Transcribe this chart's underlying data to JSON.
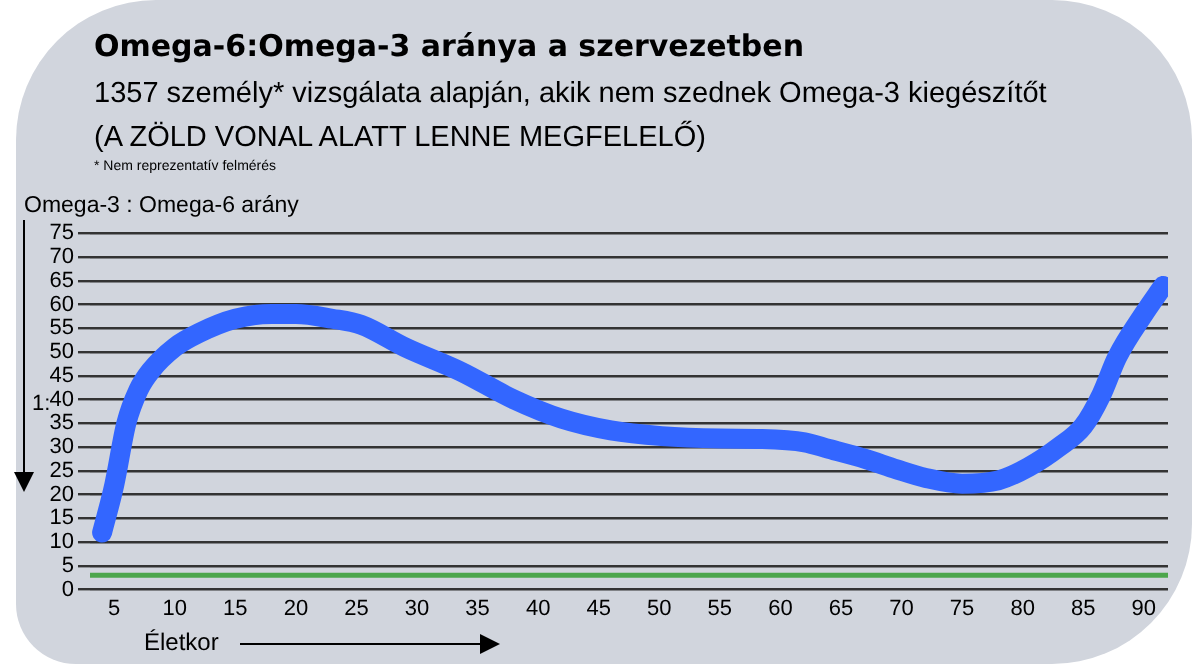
{
  "chart_data": {
    "type": "line",
    "title": "Omega-6:Omega-3 aránya a szervezetben",
    "subtitle": "1357 személy* vizsgálata alapján, akik nem szednek Omega-3 kiegészítőt\n(A ZÖLD VONAL ALATT LENNE MEGFELELŐ)",
    "ylabel": "Omega-3 : Omega-6 arány",
    "xlabel": "Életkor",
    "annotations": [
      "* Nem reprezentatív felmérés",
      "1:"
    ],
    "series": [
      {
        "color": "#3366ff",
        "x": [
          4,
          5,
          6,
          7,
          8,
          10,
          12,
          15,
          18,
          20,
          23,
          25.4,
          29,
          33.6,
          38,
          41.9,
          46,
          50.2,
          55,
          58.5,
          62,
          64,
          67,
          69.6,
          72,
          75,
          78,
          80.5,
          83,
          85,
          86.5,
          87.8,
          90,
          91.6
        ],
        "values": [
          12,
          22,
          35,
          42,
          46,
          51,
          54,
          57,
          58,
          58,
          57,
          55.7,
          51,
          45.9,
          40,
          36,
          33.5,
          32.3,
          31.8,
          31.7,
          31,
          29.6,
          27.5,
          25.3,
          23.5,
          22.3,
          23,
          25.8,
          30,
          34.4,
          41,
          48.9,
          58,
          63.9
        ]
      }
    ],
    "xlim": [
      3,
      92
    ],
    "ylim": [
      0,
      75
    ],
    "xticks": [
      5,
      10,
      15,
      20,
      25,
      30,
      35,
      40,
      45,
      50,
      55,
      60,
      65,
      70,
      75,
      80,
      85,
      90
    ],
    "yticks": [
      0,
      5,
      10,
      15,
      20,
      25,
      30,
      35,
      40,
      45,
      50,
      55,
      60,
      65,
      70,
      75
    ],
    "ref_lines": [
      {
        "axis": "y",
        "value": 3,
        "color": "#4ca64c"
      }
    ],
    "grid": "y",
    "legend": false,
    "marker": "none",
    "line_style": "solid"
  }
}
